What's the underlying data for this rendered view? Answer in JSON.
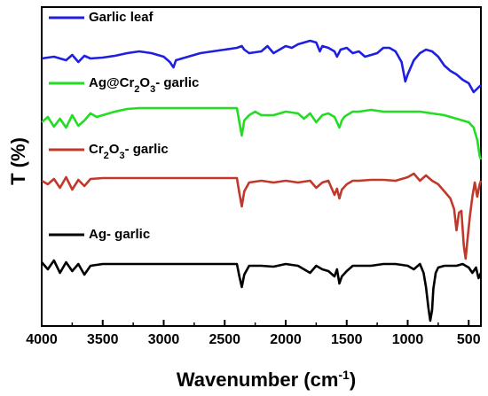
{
  "chart_data": {
    "type": "line",
    "xlabel": "Wavenumber (cm",
    "xlabel_sup": "-1",
    "xlabel_close": ")",
    "ylabel": "T (%)",
    "xlim": [
      4000,
      400
    ],
    "x_reversed": true,
    "y_ticks_shown": false,
    "grid": false,
    "x_ticks": [
      "4000",
      "3500",
      "3000",
      "2500",
      "2000",
      "1500",
      "1000",
      "500"
    ],
    "series": [
      {
        "name": "Garlic leaf",
        "color": "#1f1fe0",
        "label_parts": [
          {
            "t": "Garlic leaf"
          }
        ],
        "points": [
          [
            4000,
            58
          ],
          [
            3900,
            56
          ],
          [
            3800,
            60
          ],
          [
            3750,
            54
          ],
          [
            3700,
            62
          ],
          [
            3650,
            55
          ],
          [
            3600,
            58
          ],
          [
            3500,
            57
          ],
          [
            3400,
            55
          ],
          [
            3300,
            52
          ],
          [
            3200,
            50
          ],
          [
            3100,
            52
          ],
          [
            3000,
            56
          ],
          [
            2950,
            62
          ],
          [
            2920,
            68
          ],
          [
            2900,
            60
          ],
          [
            2850,
            58
          ],
          [
            2700,
            52
          ],
          [
            2600,
            50
          ],
          [
            2500,
            48
          ],
          [
            2400,
            46
          ],
          [
            2360,
            44
          ],
          [
            2340,
            48
          ],
          [
            2300,
            52
          ],
          [
            2200,
            50
          ],
          [
            2150,
            44
          ],
          [
            2100,
            52
          ],
          [
            2050,
            48
          ],
          [
            2000,
            44
          ],
          [
            1950,
            46
          ],
          [
            1900,
            42
          ],
          [
            1850,
            40
          ],
          [
            1800,
            38
          ],
          [
            1750,
            40
          ],
          [
            1720,
            50
          ],
          [
            1700,
            44
          ],
          [
            1650,
            46
          ],
          [
            1600,
            50
          ],
          [
            1580,
            56
          ],
          [
            1550,
            48
          ],
          [
            1500,
            46
          ],
          [
            1450,
            52
          ],
          [
            1400,
            50
          ],
          [
            1350,
            56
          ],
          [
            1300,
            54
          ],
          [
            1250,
            52
          ],
          [
            1200,
            46
          ],
          [
            1150,
            46
          ],
          [
            1100,
            50
          ],
          [
            1050,
            62
          ],
          [
            1020,
            84
          ],
          [
            1000,
            76
          ],
          [
            950,
            60
          ],
          [
            900,
            52
          ],
          [
            850,
            48
          ],
          [
            800,
            50
          ],
          [
            750,
            56
          ],
          [
            700,
            66
          ],
          [
            650,
            72
          ],
          [
            600,
            76
          ],
          [
            550,
            82
          ],
          [
            500,
            86
          ],
          [
            460,
            96
          ],
          [
            430,
            92
          ],
          [
            400,
            88
          ]
        ]
      },
      {
        "name": "Ag@Cr2O3- garlic",
        "color": "#22dd22",
        "label_parts": [
          {
            "t": "Ag@Cr"
          },
          {
            "t": "2",
            "sub": true
          },
          {
            "t": "O"
          },
          {
            "t": "3",
            "sub": true
          },
          {
            "t": "- garlic"
          }
        ],
        "points": [
          [
            4000,
            130
          ],
          [
            3950,
            124
          ],
          [
            3900,
            135
          ],
          [
            3850,
            126
          ],
          [
            3800,
            136
          ],
          [
            3750,
            122
          ],
          [
            3700,
            134
          ],
          [
            3650,
            128
          ],
          [
            3600,
            120
          ],
          [
            3550,
            124
          ],
          [
            3500,
            122
          ],
          [
            3400,
            118
          ],
          [
            3300,
            115
          ],
          [
            3200,
            114
          ],
          [
            3100,
            114
          ],
          [
            3000,
            114
          ],
          [
            2900,
            114
          ],
          [
            2700,
            114
          ],
          [
            2500,
            114
          ],
          [
            2400,
            114
          ],
          [
            2380,
            130
          ],
          [
            2360,
            145
          ],
          [
            2340,
            128
          ],
          [
            2300,
            122
          ],
          [
            2250,
            118
          ],
          [
            2200,
            122
          ],
          [
            2100,
            122
          ],
          [
            2000,
            118
          ],
          [
            1900,
            120
          ],
          [
            1850,
            126
          ],
          [
            1800,
            120
          ],
          [
            1750,
            130
          ],
          [
            1700,
            122
          ],
          [
            1650,
            120
          ],
          [
            1600,
            124
          ],
          [
            1580,
            130
          ],
          [
            1560,
            136
          ],
          [
            1540,
            128
          ],
          [
            1520,
            124
          ],
          [
            1500,
            122
          ],
          [
            1450,
            118
          ],
          [
            1400,
            118
          ],
          [
            1300,
            116
          ],
          [
            1200,
            118
          ],
          [
            1100,
            118
          ],
          [
            1000,
            118
          ],
          [
            900,
            118
          ],
          [
            800,
            120
          ],
          [
            700,
            122
          ],
          [
            600,
            126
          ],
          [
            500,
            130
          ],
          [
            460,
            136
          ],
          [
            430,
            150
          ],
          [
            410,
            168
          ],
          [
            400,
            172
          ]
        ]
      },
      {
        "name": "Cr2O3- garlic",
        "color": "#c0392b",
        "label_parts": [
          {
            "t": "Cr"
          },
          {
            "t": "2",
            "sub": true
          },
          {
            "t": "O"
          },
          {
            "t": "3",
            "sub": true
          },
          {
            "t": "- garlic"
          }
        ],
        "points": [
          [
            4000,
            196
          ],
          [
            3950,
            200
          ],
          [
            3900,
            194
          ],
          [
            3850,
            204
          ],
          [
            3800,
            192
          ],
          [
            3750,
            206
          ],
          [
            3700,
            195
          ],
          [
            3650,
            202
          ],
          [
            3600,
            194
          ],
          [
            3500,
            193
          ],
          [
            3300,
            193
          ],
          [
            3000,
            193
          ],
          [
            2700,
            193
          ],
          [
            2500,
            193
          ],
          [
            2400,
            193
          ],
          [
            2380,
            210
          ],
          [
            2360,
            225
          ],
          [
            2340,
            208
          ],
          [
            2300,
            198
          ],
          [
            2200,
            196
          ],
          [
            2100,
            198
          ],
          [
            2000,
            196
          ],
          [
            1900,
            198
          ],
          [
            1800,
            196
          ],
          [
            1750,
            204
          ],
          [
            1700,
            198
          ],
          [
            1650,
            196
          ],
          [
            1600,
            212
          ],
          [
            1580,
            205
          ],
          [
            1560,
            216
          ],
          [
            1540,
            206
          ],
          [
            1500,
            200
          ],
          [
            1450,
            196
          ],
          [
            1400,
            196
          ],
          [
            1300,
            195
          ],
          [
            1200,
            195
          ],
          [
            1100,
            196
          ],
          [
            1000,
            192
          ],
          [
            950,
            188
          ],
          [
            900,
            196
          ],
          [
            850,
            190
          ],
          [
            800,
            196
          ],
          [
            750,
            200
          ],
          [
            700,
            208
          ],
          [
            650,
            216
          ],
          [
            620,
            228
          ],
          [
            600,
            252
          ],
          [
            580,
            232
          ],
          [
            560,
            230
          ],
          [
            540,
            270
          ],
          [
            525,
            284
          ],
          [
            510,
            262
          ],
          [
            490,
            236
          ],
          [
            470,
            214
          ],
          [
            450,
            198
          ],
          [
            430,
            214
          ],
          [
            410,
            200
          ],
          [
            400,
            196
          ]
        ]
      },
      {
        "name": "Ag- garlic",
        "color": "#000000",
        "label_parts": [
          {
            "t": "Ag- garlic"
          }
        ],
        "points": [
          [
            4000,
            288
          ],
          [
            3950,
            296
          ],
          [
            3900,
            286
          ],
          [
            3850,
            300
          ],
          [
            3800,
            288
          ],
          [
            3750,
            298
          ],
          [
            3700,
            290
          ],
          [
            3650,
            302
          ],
          [
            3600,
            292
          ],
          [
            3500,
            290
          ],
          [
            3300,
            290
          ],
          [
            3000,
            290
          ],
          [
            2700,
            290
          ],
          [
            2500,
            290
          ],
          [
            2400,
            290
          ],
          [
            2380,
            304
          ],
          [
            2360,
            316
          ],
          [
            2340,
            302
          ],
          [
            2300,
            292
          ],
          [
            2200,
            292
          ],
          [
            2100,
            293
          ],
          [
            2000,
            290
          ],
          [
            1900,
            292
          ],
          [
            1800,
            300
          ],
          [
            1750,
            292
          ],
          [
            1700,
            296
          ],
          [
            1650,
            298
          ],
          [
            1600,
            304
          ],
          [
            1580,
            296
          ],
          [
            1560,
            312
          ],
          [
            1540,
            304
          ],
          [
            1500,
            298
          ],
          [
            1450,
            292
          ],
          [
            1400,
            292
          ],
          [
            1300,
            292
          ],
          [
            1200,
            290
          ],
          [
            1100,
            290
          ],
          [
            1000,
            292
          ],
          [
            950,
            296
          ],
          [
            900,
            290
          ],
          [
            870,
            300
          ],
          [
            850,
            316
          ],
          [
            830,
            340
          ],
          [
            815,
            354
          ],
          [
            800,
            342
          ],
          [
            790,
            318
          ],
          [
            770,
            300
          ],
          [
            750,
            294
          ],
          [
            700,
            292
          ],
          [
            650,
            292
          ],
          [
            600,
            292
          ],
          [
            550,
            290
          ],
          [
            500,
            294
          ],
          [
            470,
            300
          ],
          [
            440,
            294
          ],
          [
            420,
            306
          ],
          [
            400,
            300
          ]
        ]
      }
    ]
  }
}
